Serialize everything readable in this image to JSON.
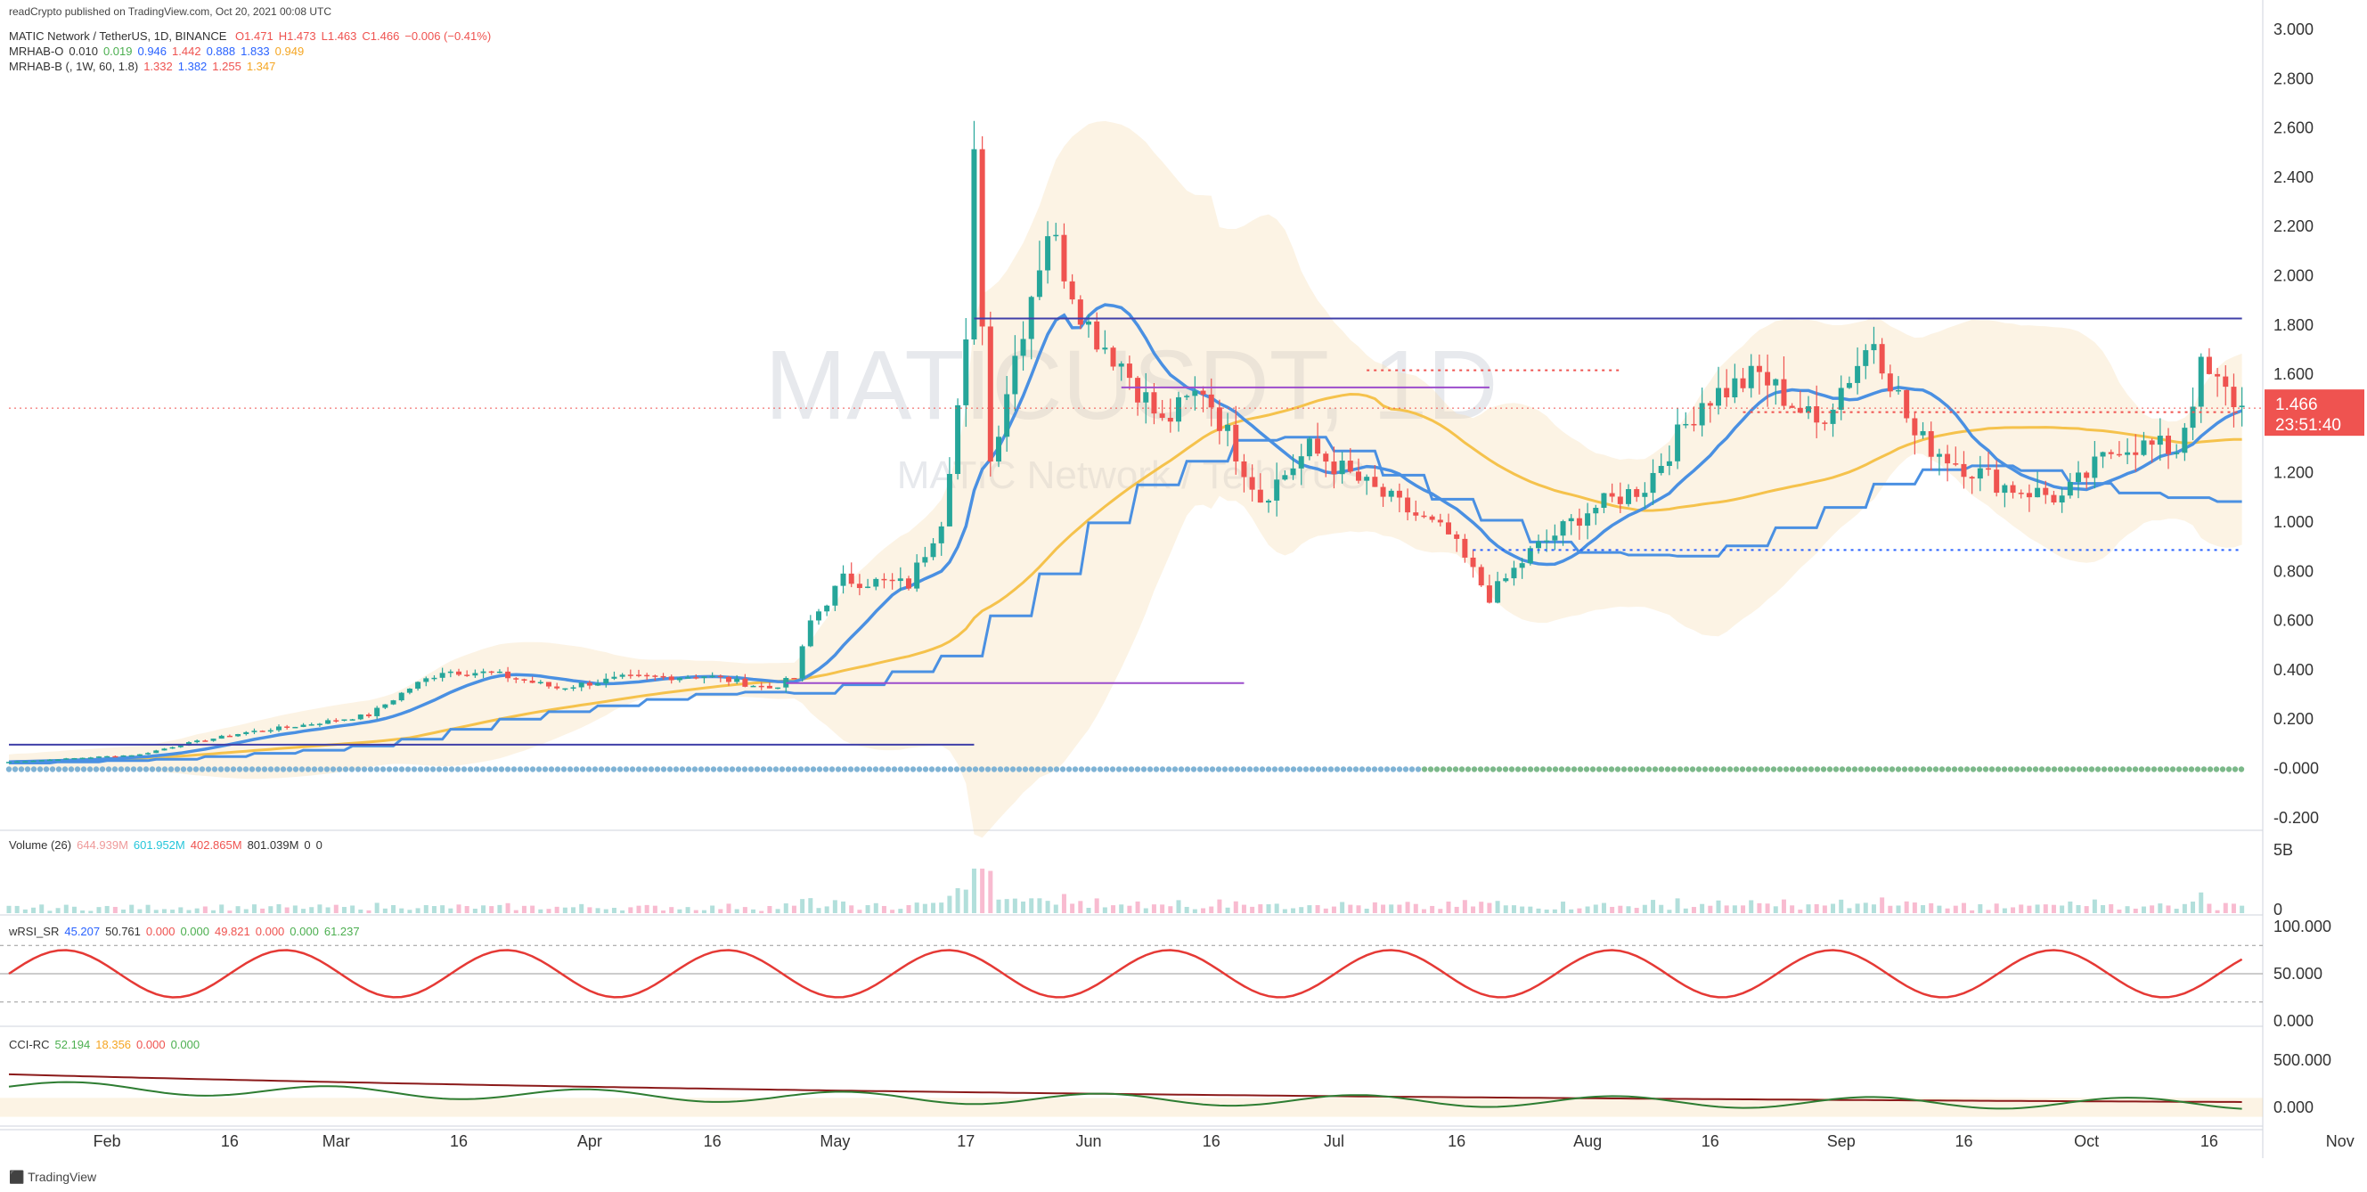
{
  "header": {
    "published": "readCrypto published on TradingView.com, Oct 20, 2021 00:08 UTC"
  },
  "legend": {
    "symbol": "MATIC Network / TetherUS, 1D, BINANCE",
    "ohlc": [
      "O1.471",
      "H1.473",
      "L1.463",
      "C1.466",
      "−0.006 (−0.41%)"
    ],
    "mrhab_o": {
      "label": "MRHAB-O",
      "values": [
        "0.010",
        "0.019",
        "0.946",
        "1.442",
        "0.888",
        "1.833",
        "0.949"
      ],
      "colors": [
        "#333333",
        "#4caf50",
        "#2962ff",
        "#ef5350",
        "#2962ff",
        "#2962ff",
        "#f5a623"
      ]
    },
    "mrhab_b": {
      "label": "MRHAB-B (, 1W, 60, 1.8)",
      "values": [
        "1.332",
        "1.382",
        "1.255",
        "1.347"
      ],
      "colors": [
        "#ef5350",
        "#2962ff",
        "#ef5350",
        "#f5a623"
      ]
    }
  },
  "watermark": {
    "symbol": "MATICUSDT, 1D",
    "name": "MATIC Network / TetherUS"
  },
  "price_label": {
    "value": "1.466",
    "countdown": "23:51:40",
    "color": "#ef5350"
  },
  "panes": {
    "volume": {
      "label": "Volume (26)",
      "values": [
        "644.939M",
        "601.952M",
        "402.865M",
        "801.039M",
        "0",
        "0"
      ],
      "colors": [
        "#ef9a9a",
        "#26c6da",
        "#ef5350",
        "#333333",
        "#333333",
        "#333333"
      ],
      "axis": [
        "5B",
        "0"
      ]
    },
    "wrsi": {
      "label": "wRSI_SR",
      "values": [
        "45.207",
        "50.761",
        "0.000",
        "0.000",
        "49.821",
        "0.000",
        "0.000",
        "61.237"
      ],
      "colors": [
        "#2962ff",
        "#333333",
        "#ef5350",
        "#4caf50",
        "#ef5350",
        "#ef5350",
        "#4caf50",
        "#4caf50"
      ],
      "axis": [
        "100.000",
        "50.000",
        "0.000"
      ]
    },
    "cci": {
      "label": "CCI-RC",
      "values": [
        "52.194",
        "18.356",
        "0.000",
        "0.000"
      ],
      "colors": [
        "#4caf50",
        "#f5a623",
        "#ef5350",
        "#4caf50"
      ],
      "axis": [
        "500.000",
        "0.000"
      ]
    }
  },
  "footer": {
    "logo": "TradingView"
  },
  "colors": {
    "up": "#26a69a",
    "down": "#ef5350",
    "bull_candle": "#4caf50"
  },
  "chart_data": {
    "type": "candlestick",
    "price_axis": {
      "ticks": [
        "3.000",
        "2.800",
        "2.600",
        "2.400",
        "2.200",
        "2.000",
        "1.800",
        "1.600",
        "1.400",
        "1.200",
        "1.000",
        "0.800",
        "0.600",
        "0.400",
        "0.200",
        "-0.000",
        "-0.200"
      ],
      "ylim": [
        -0.2,
        3.0
      ]
    },
    "x_axis": {
      "ticks": [
        "Feb",
        "16",
        "Mar",
        "16",
        "Apr",
        "16",
        "May",
        "17",
        "Jun",
        "16",
        "Jul",
        "16",
        "Aug",
        "16",
        "Sep",
        "16",
        "Oct",
        "16",
        "Nov"
      ]
    },
    "close_anchors": [
      [
        "2021-01-20",
        0.03
      ],
      [
        "2021-02-05",
        0.06
      ],
      [
        "2021-02-10",
        0.1
      ],
      [
        "2021-02-18",
        0.15
      ],
      [
        "2021-02-25",
        0.18
      ],
      [
        "2021-03-05",
        0.22
      ],
      [
        "2021-03-10",
        0.33
      ],
      [
        "2021-03-14",
        0.4
      ],
      [
        "2021-03-20",
        0.39
      ],
      [
        "2021-03-28",
        0.33
      ],
      [
        "2021-04-05",
        0.37
      ],
      [
        "2021-04-15",
        0.38
      ],
      [
        "2021-04-23",
        0.33
      ],
      [
        "2021-04-26",
        0.37
      ],
      [
        "2021-04-28",
        0.6
      ],
      [
        "2021-05-02",
        0.77
      ],
      [
        "2021-05-10",
        0.75
      ],
      [
        "2021-05-14",
        1.02
      ],
      [
        "2021-05-17",
        1.7
      ],
      [
        "2021-05-18",
        2.45
      ],
      [
        "2021-05-19",
        1.85
      ],
      [
        "2021-05-20",
        1.25
      ],
      [
        "2021-05-22",
        1.55
      ],
      [
        "2021-05-27",
        2.2
      ],
      [
        "2021-06-01",
        1.8
      ],
      [
        "2021-06-05",
        1.65
      ],
      [
        "2021-06-10",
        1.4
      ],
      [
        "2021-06-15",
        1.55
      ],
      [
        "2021-06-22",
        1.1
      ],
      [
        "2021-06-28",
        1.3
      ],
      [
        "2021-07-05",
        1.15
      ],
      [
        "2021-07-10",
        1.05
      ],
      [
        "2021-07-15",
        0.95
      ],
      [
        "2021-07-20",
        0.7
      ],
      [
        "2021-07-25",
        0.88
      ],
      [
        "2021-08-01",
        1.05
      ],
      [
        "2021-08-08",
        1.15
      ],
      [
        "2021-08-15",
        1.5
      ],
      [
        "2021-08-22",
        1.6
      ],
      [
        "2021-08-29",
        1.4
      ],
      [
        "2021-09-05",
        1.75
      ],
      [
        "2021-09-10",
        1.35
      ],
      [
        "2021-09-15",
        1.25
      ],
      [
        "2021-09-21",
        1.15
      ],
      [
        "2021-09-28",
        1.1
      ],
      [
        "2021-10-05",
        1.32
      ],
      [
        "2021-10-12",
        1.3
      ],
      [
        "2021-10-15",
        1.62
      ],
      [
        "2021-10-20",
        1.466
      ]
    ],
    "horizontal_lines": [
      {
        "price": 1.83,
        "from": "2021-05-18",
        "to": "2021-10-20",
        "color": "#3f3fa8"
      },
      {
        "price": 1.55,
        "from": "2021-06-05",
        "to": "2021-07-20",
        "color": "#9c4dcc"
      },
      {
        "price": 1.62,
        "from": "2021-07-05",
        "to": "2021-08-05",
        "color": "#ef5350",
        "dashed": true
      },
      {
        "price": 1.45,
        "from": "2021-08-20",
        "to": "2021-10-20",
        "color": "#ef5350",
        "dashed": true
      },
      {
        "price": 0.89,
        "from": "2021-07-18",
        "to": "2021-10-20",
        "color": "#2962ff",
        "dashed": true
      },
      {
        "price": 0.35,
        "from": "2021-04-25",
        "to": "2021-06-20",
        "color": "#9c4dcc"
      },
      {
        "price": 0.1,
        "from": "2021-01-20",
        "to": "2021-05-18",
        "color": "#3f3fa8"
      }
    ]
  }
}
